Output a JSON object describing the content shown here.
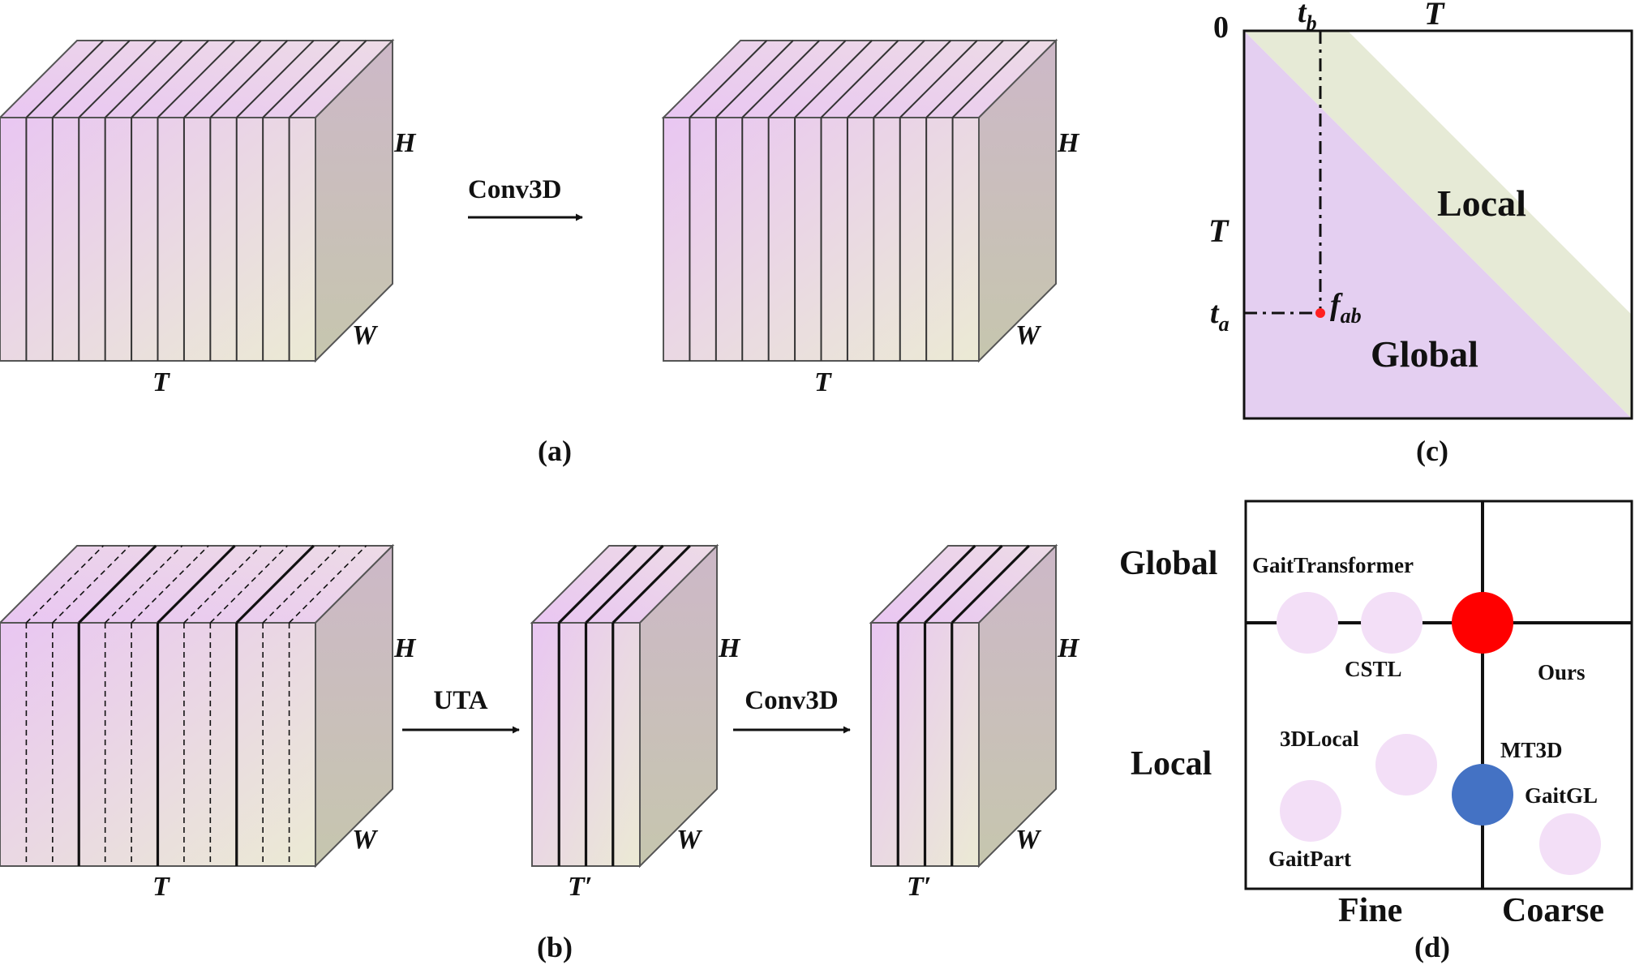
{
  "panels": {
    "a": {
      "caption": "(a)",
      "operation": "Conv3D",
      "input_cube": {
        "h_label": "H",
        "w_label": "W",
        "t_label": "T",
        "slices": 12
      },
      "output_cube": {
        "h_label": "H",
        "w_label": "W",
        "t_label": "T",
        "slices": 12
      }
    },
    "b": {
      "caption": "(b)",
      "operation_1": "UTA",
      "operation_2": "Conv3D",
      "input_cube": {
        "h_label": "H",
        "w_label": "W",
        "t_label": "T",
        "groups": 4,
        "slices_per_group": 3
      },
      "mid_cube": {
        "h_label": "H",
        "w_label": "W",
        "t_label": "T′",
        "slices": 4
      },
      "output_cube": {
        "h_label": "H",
        "w_label": "W",
        "t_label": "T′",
        "slices": 4
      }
    },
    "c": {
      "caption": "(c)",
      "origin_label": "0",
      "top_axis_label": "T",
      "left_axis_label": "T",
      "tb_label": "t",
      "tb_sub": "b",
      "ta_label": "t",
      "ta_sub": "a",
      "point_label": "f",
      "point_sub": "ab",
      "local_label": "Local",
      "global_label": "Global",
      "colors": {
        "local": "#e6ead6",
        "global": "#e4cff1",
        "point": "#ff2020"
      }
    },
    "d": {
      "caption": "(d)",
      "row_labels": {
        "top": "Global",
        "bottom": "Local"
      },
      "col_labels": {
        "left": "Fine",
        "right": "Coarse"
      },
      "methods": [
        {
          "name": "GaitTransformer",
          "highlight": "none"
        },
        {
          "name": "CSTL",
          "highlight": "none"
        },
        {
          "name": "Ours",
          "highlight": "red"
        },
        {
          "name": "3DLocal",
          "highlight": "none"
        },
        {
          "name": "MT3D",
          "highlight": "blue"
        },
        {
          "name": "GaitGL",
          "highlight": "none"
        },
        {
          "name": "GaitPart",
          "highlight": "none"
        }
      ],
      "colors": {
        "faded": "#f3dff7",
        "ours": "#ff0000",
        "mt3d": "#4472c4"
      }
    }
  },
  "colors": {
    "cube_front_top": "#e8c4f0",
    "cube_front_bottom": "#ece9d6",
    "cube_side": "#c8bcb8",
    "edge": "#555555"
  }
}
